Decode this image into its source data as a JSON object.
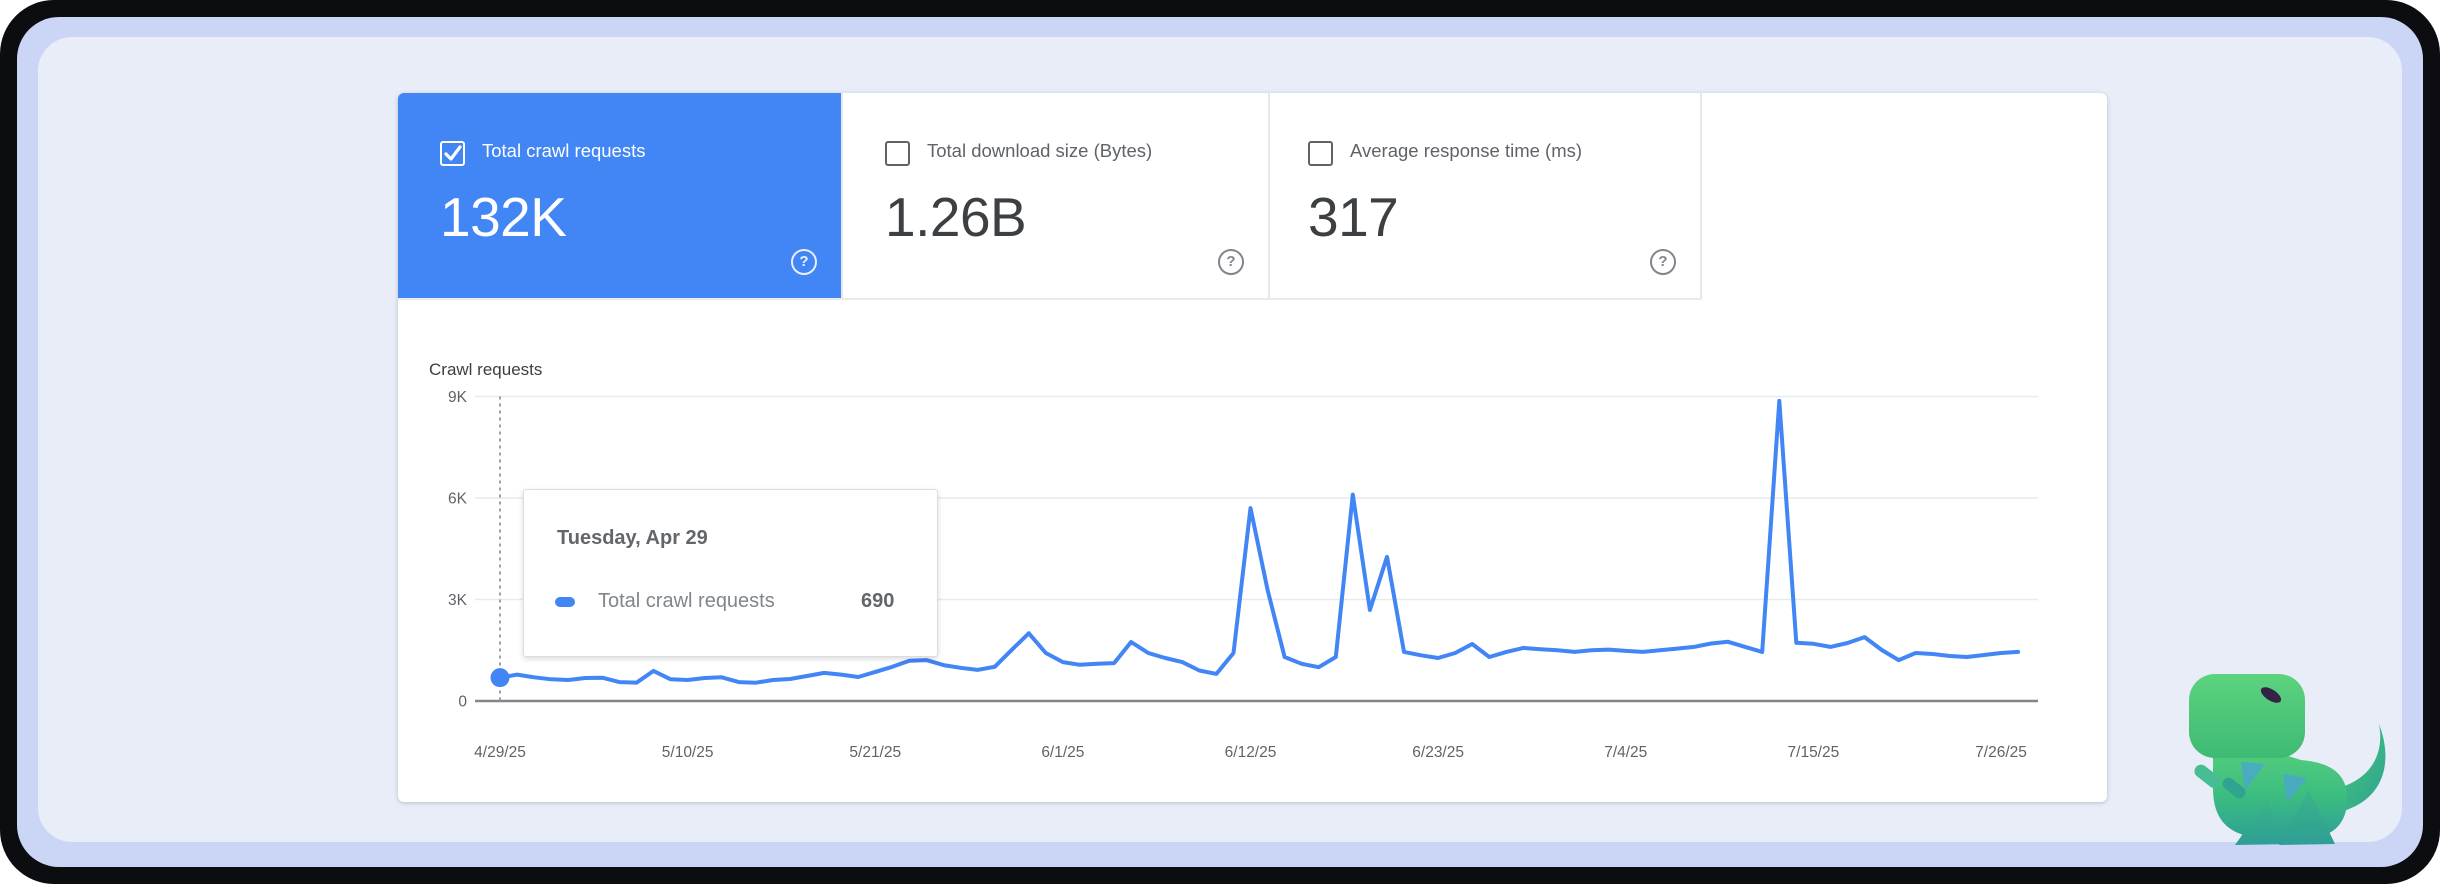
{
  "colors": {
    "accent_blue": "#4285f4",
    "frame_dark": "#0c0d11",
    "ring_lavender": "#cbd6f7",
    "panel_bg": "#e9edf8",
    "card_bg": "#ffffff",
    "label_grey": "#5f6368",
    "value_grey": "#3c4043",
    "gridline": "#e8eaed",
    "axis_line": "#80868b"
  },
  "metrics": {
    "cards": [
      {
        "label": "Total crawl requests",
        "value": "132K",
        "checked": true,
        "selected": true
      },
      {
        "label": "Total download size (Bytes)",
        "value": "1.26B",
        "checked": false,
        "selected": false
      },
      {
        "label": "Average response time (ms)",
        "value": "317",
        "checked": false,
        "selected": false
      }
    ],
    "help_glyph": "?"
  },
  "chart_data": {
    "type": "line",
    "title": "Crawl requests",
    "xlabel": "",
    "ylabel": "",
    "ylim": [
      0,
      9000
    ],
    "grid": "horizontal",
    "legend_position": "none",
    "yticks": [
      {
        "label": "0",
        "value": 0
      },
      {
        "label": "3K",
        "value": 3000
      },
      {
        "label": "6K",
        "value": 6000
      },
      {
        "label": "9K",
        "value": 9000
      }
    ],
    "xticks": [
      {
        "label": "4/29/25",
        "day": 0
      },
      {
        "label": "5/10/25",
        "day": 11
      },
      {
        "label": "5/21/25",
        "day": 22
      },
      {
        "label": "6/1/25",
        "day": 33
      },
      {
        "label": "6/12/25",
        "day": 44
      },
      {
        "label": "6/23/25",
        "day": 55
      },
      {
        "label": "7/4/25",
        "day": 66
      },
      {
        "label": "7/15/25",
        "day": 77
      },
      {
        "label": "7/26/25",
        "day": 88
      }
    ],
    "series": [
      {
        "name": "Total crawl requests",
        "color": "#4285f4",
        "start_date": "4/29/25",
        "values": [
          690,
          780,
          700,
          640,
          620,
          680,
          690,
          560,
          540,
          890,
          640,
          620,
          680,
          700,
          560,
          540,
          620,
          650,
          740,
          830,
          780,
          710,
          860,
          1010,
          1190,
          1210,
          1060,
          980,
          920,
          1010,
          1510,
          2000,
          1420,
          1150,
          1070,
          1100,
          1120,
          1745,
          1420,
          1270,
          1150,
          900,
          800,
          1420,
          5700,
          3280,
          1300,
          1100,
          1000,
          1300,
          6100,
          2690,
          4260,
          1450,
          1350,
          1270,
          1420,
          1685,
          1300,
          1450,
          1570,
          1530,
          1500,
          1450,
          1500,
          1520,
          1480,
          1450,
          1500,
          1550,
          1600,
          1700,
          1750,
          1600,
          1450,
          8870,
          1720,
          1690,
          1600,
          1715,
          1890,
          1510,
          1210,
          1420,
          1390,
          1330,
          1300,
          1360,
          1420,
          1450
        ]
      }
    ]
  },
  "tooltip": {
    "title": "Tuesday, Apr 29",
    "series_label": "Total crawl requests",
    "value": "690"
  },
  "selected_point": {
    "date": "4/29/25",
    "value": 690
  }
}
